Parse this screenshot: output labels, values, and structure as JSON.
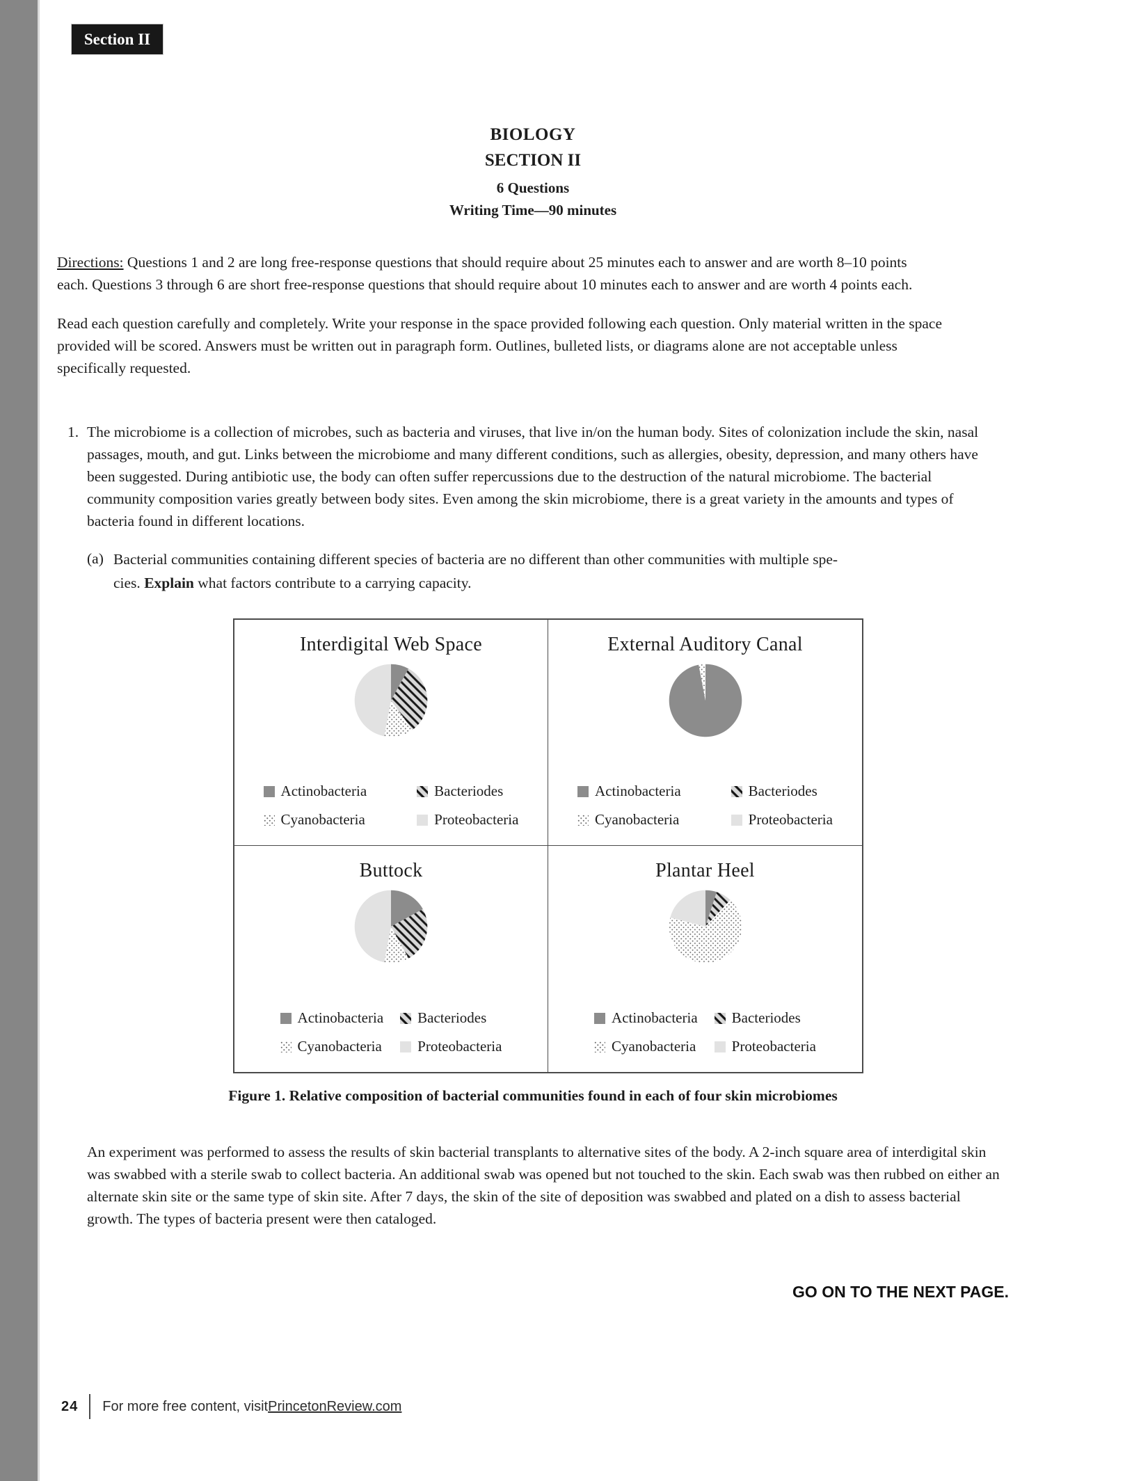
{
  "page": {
    "section_tab": "Section II",
    "go_on": "GO ON TO THE NEXT PAGE.",
    "page_number": "24",
    "footer_text": "For more free content, visit ",
    "footer_link": "PrincetonReview.com"
  },
  "header": {
    "title": "BIOLOGY",
    "section": "SECTION II",
    "question_count": "6 Questions",
    "writing_time": "Writing Time—90 minutes"
  },
  "directions": {
    "label": "Directions:",
    "body": " Questions 1 and 2 are long free-response questions that should require about 25 minutes each to answer and are worth 8–10 points each. Questions 3 through 6 are short free-response questions that should require about 10 minutes each to answer and are worth 4 points each.",
    "para2": "Read each question carefully and completely. Write your response in the space provided following each question. Only material written in the space provided will be scored. Answers must be written out in paragraph form. Outlines, bulleted lists, or diagrams alone are not acceptable unless specifically requested."
  },
  "question1": {
    "number": "1.",
    "text": "The microbiome is a collection of microbes, such as bacteria and viruses, that live in/on the human body. Sites of colonization include the skin, nasal passages, mouth, and gut. Links between the microbiome and many different conditions, such as allergies, obesity, depression, and many others have been suggested. During antibiotic use, the body can often suffer repercussions due to the destruction of the natural microbiome. The bacterial community composition varies greatly between body sites. Even among the skin microbiome, there is a great variety in the amounts and types of bacteria found in different locations.",
    "part_a": {
      "label": "(a)",
      "line1": "Bacterial communities containing different species of bacteria are no different than other communities with multiple spe-",
      "line2_pre": "cies. ",
      "line2_bold": "Explain",
      "line2_post": " what factors contribute to a carrying capacity."
    }
  },
  "figure": {
    "caption": "Figure 1. Relative composition of bacterial communities found in each of four skin microbiomes"
  },
  "after_figure": "An experiment was performed to assess the results of skin bacterial transplants to alternative sites of the body. A 2-inch square area of interdigital skin was swabbed with a sterile swab to collect bacteria. An additional swab was opened but not touched to the skin. Each swab was then rubbed on either an alternate skin site or the same type of skin site. After 7 days, the skin of the site of deposition was swabbed and plated on a dish to assess bacterial growth. The types of bacteria present were then cataloged.",
  "colors": {
    "sidebar_gray": "#868686",
    "actinobacteria_fill": "#8c8c8c",
    "proteobacteria_fill": "#e2e2e2",
    "bacteriodes_hatch_bg": "#d8d8d8",
    "bacteriodes_hatch_line": "#161616",
    "cyanobacteria_dot": "#6e6e6e"
  },
  "chart_data": [
    {
      "type": "pie",
      "title": "Interdigital Web Space",
      "labels": [
        "Actinobacteria",
        "Bacteriodes",
        "Cyanobacteria",
        "Proteobacteria"
      ],
      "values": [
        8,
        32,
        13,
        47
      ],
      "value_unit": "percent",
      "start_angle_deg": 0,
      "direction": "clockwise",
      "legend_position": "below"
    },
    {
      "type": "pie",
      "title": "External Auditory Canal",
      "labels": [
        "Actinobacteria",
        "Bacteriodes",
        "Cyanobacteria",
        "Proteobacteria"
      ],
      "values": [
        97,
        0,
        3,
        0
      ],
      "value_unit": "percent",
      "start_angle_deg": 0,
      "direction": "clockwise",
      "legend_position": "below"
    },
    {
      "type": "pie",
      "title": "Buttock",
      "labels": [
        "Actinobacteria",
        "Bacteriodes",
        "Cyanobacteria",
        "Proteobacteria"
      ],
      "values": [
        17,
        25,
        11,
        47
      ],
      "value_unit": "percent",
      "start_angle_deg": 0,
      "direction": "clockwise",
      "legend_position": "below"
    },
    {
      "type": "pie",
      "title": "Plantar Heel",
      "labels": [
        "Actinobacteria",
        "Bacteriodes",
        "Cyanobacteria",
        "Proteobacteria"
      ],
      "values": [
        5,
        7,
        67,
        21
      ],
      "value_unit": "percent",
      "start_angle_deg": 0,
      "direction": "clockwise",
      "legend_position": "below"
    }
  ]
}
